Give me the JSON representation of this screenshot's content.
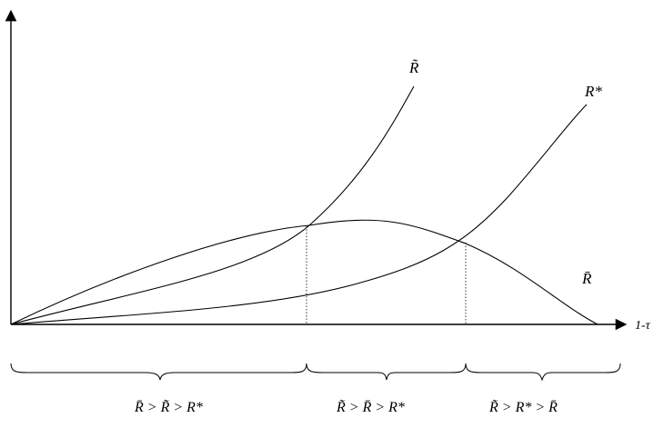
{
  "axis": {
    "x_label": "1-τ"
  },
  "curves": [
    {
      "id": "r-tilde",
      "label": "R̃"
    },
    {
      "id": "r-star",
      "label": "R*"
    },
    {
      "id": "r-bar",
      "label": "R̄"
    }
  ],
  "regions": [
    {
      "label": "R̄ > R̃ > R*"
    },
    {
      "label": "R̃ > R̄ > R*"
    },
    {
      "label": "R̃ > R* > R̄"
    }
  ]
}
